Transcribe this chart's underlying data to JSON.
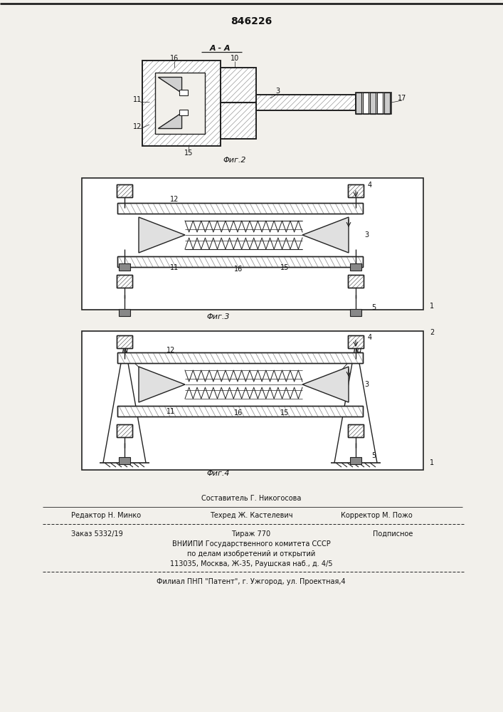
{
  "patent_number": "846226",
  "background_color": "#f2f0eb",
  "fig2_caption": "Φиг.2",
  "fig3_caption": "Φиг.3",
  "fig4_caption": "Φиг.4",
  "section_label": "А - А",
  "footer_line0_center": "Составитель Г. Никогосова",
  "footer_line1_left": "Редактор Н. Минко",
  "footer_line1_center": "Техред Ж. Кастелевич",
  "footer_line1_right": "Корректор М. Пожо",
  "footer_line2_left": "Заказ 5332/19",
  "footer_line2_center": "Тираж 770",
  "footer_line2_right": "Подписное",
  "footer_line3": "ВНИИПИ Государственного комитета СССР",
  "footer_line4": "по делам изобретений и открытий",
  "footer_line5": "113035, Москва, Ж-35, Раушская наб., д. 4/5",
  "footer_line6": "Филиал ПНП \"Патент\", г. Ужгород, ул. Проектная,4",
  "lc": "#222222",
  "tc": "#111111",
  "hatch_gray": "#888888",
  "hatch_dark": "#555555",
  "fill_hatch": "#aaaaaa"
}
